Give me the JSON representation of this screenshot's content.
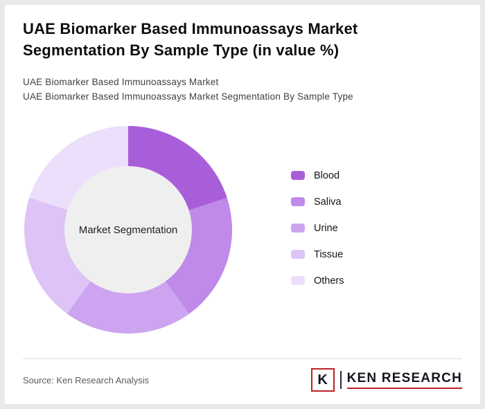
{
  "page": {
    "title": "UAE Biomarker Based Immunoassays Market Segmentation By Sample Type (in value %)",
    "subtitle_line1": "UAE Biomarker Based Immunoassays Market",
    "subtitle_line2": "UAE Biomarker Based Immunoassays Market Segmentation By Sample Type"
  },
  "chart_data": {
    "type": "pie",
    "subtype": "donut",
    "title": "UAE Biomarker Based Immunoassays Market Segmentation By Sample Type (in value %)",
    "center_label": "Market Segmentation",
    "labels": [
      "Blood",
      "Saliva",
      "Urine",
      "Tissue",
      "Others"
    ],
    "values": [
      20,
      20,
      20,
      20,
      20
    ],
    "colors": [
      "#a95ed9",
      "#bf8ae9",
      "#cda4f0",
      "#ddc3f6",
      "#ecdffb"
    ],
    "donut_hole_color": "#efefef",
    "legend_position": "right",
    "start_angle_deg": 0
  },
  "footer": {
    "source": "Source: Ken Research Analysis",
    "logo": {
      "monogram": "K",
      "brand": "KEN RESEARCH",
      "accent_color": "#c02026"
    }
  }
}
